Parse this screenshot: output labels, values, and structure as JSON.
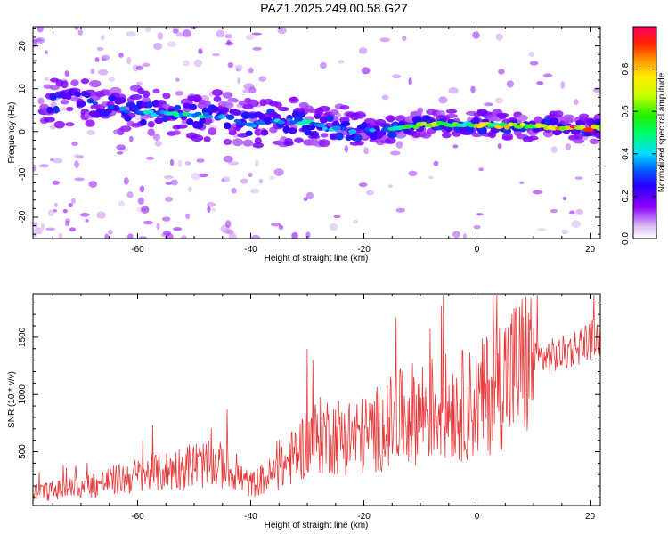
{
  "title": "PAZ1.2025.249.00.58.G27",
  "chart_data": [
    {
      "type": "heatmap",
      "xlabel": "Height of straight line (km)",
      "ylabel": "Frequency (Hz)",
      "xlim": [
        -78.5,
        21.8
      ],
      "ylim": [
        -25,
        24.5
      ],
      "xticks": [
        -60,
        -40,
        -20,
        0,
        20
      ],
      "yticks": [
        -20,
        -10,
        0,
        10,
        20
      ],
      "colorbar": {
        "label": "Normalized spectral amplitude",
        "range": [
          0,
          1
        ],
        "ticks": [
          0.0,
          0.2,
          0.4,
          0.6,
          0.8
        ],
        "colormap": "rainbow"
      },
      "ridge": {
        "x": [
          -74,
          -70,
          -65,
          -60,
          -55,
          -50,
          -45,
          -40,
          -35,
          -30,
          -25,
          -20,
          -15,
          -10,
          -5,
          0,
          5,
          10,
          15,
          20
        ],
        "center_freq": [
          7,
          7,
          5.5,
          4.5,
          4.2,
          3.8,
          3.5,
          1.5,
          2.5,
          2,
          0.5,
          0,
          0.5,
          1.5,
          1.8,
          1.6,
          1.4,
          1.3,
          0.9,
          0.8
        ],
        "peak_amplitude": [
          0.25,
          0.3,
          0.3,
          0.4,
          0.5,
          0.55,
          0.4,
          0.35,
          0.5,
          0.45,
          0.4,
          0.35,
          0.5,
          0.7,
          0.65,
          0.75,
          0.8,
          0.85,
          0.95,
          1.0
        ]
      }
    },
    {
      "type": "line",
      "xlabel": "Height of straight line (km)",
      "ylabel": "SNR (10 * v/v)",
      "xlim": [
        -78.5,
        21.8
      ],
      "ylim": [
        30,
        1880
      ],
      "xticks": [
        -60,
        -40,
        -20,
        0,
        20
      ],
      "yticks": [
        500,
        1000,
        1500
      ],
      "color": "#e83a3a",
      "trend": {
        "x": [
          -78.5,
          -70,
          -60,
          -55,
          -50,
          -45,
          -40,
          -35,
          -30,
          -27,
          -25,
          -20,
          -15,
          -10,
          -5,
          0,
          5,
          10,
          15,
          20,
          21.8
        ],
        "y": [
          140,
          190,
          290,
          330,
          390,
          380,
          210,
          330,
          590,
          650,
          640,
          640,
          760,
          860,
          890,
          920,
          1160,
          1300,
          1350,
          1480,
          1500
        ]
      }
    }
  ]
}
